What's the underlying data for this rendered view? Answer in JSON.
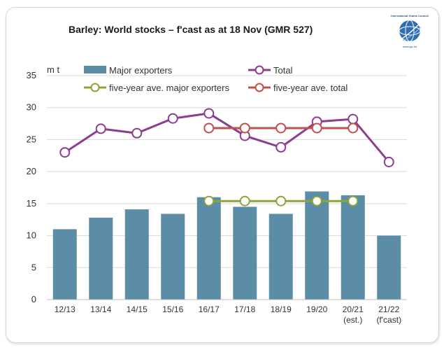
{
  "header": {
    "title": "Barley: World stocks – f'cast as at 18 Nov (GMR 527)"
  },
  "logo": {
    "org": "International Grains Council",
    "url": "www.igc.int"
  },
  "chart_data": {
    "type": "bar",
    "title": "Barley: World stocks – f'cast as at 18 Nov (GMR 527)",
    "ylabel": "m t",
    "ylim": [
      0,
      35
    ],
    "yticks": [
      0,
      5,
      10,
      15,
      20,
      25,
      30,
      35
    ],
    "grid": true,
    "legend_position": "top",
    "categories": [
      [
        "12/13"
      ],
      [
        "13/14"
      ],
      [
        "14/15"
      ],
      [
        "15/16"
      ],
      [
        "16/17"
      ],
      [
        "17/18"
      ],
      [
        "18/19"
      ],
      [
        "19/20"
      ],
      [
        "20/21",
        "(est.)"
      ],
      [
        "21/22",
        "(f'cast)"
      ]
    ],
    "series": [
      {
        "name": "Major exporters",
        "kind": "bar",
        "color": "#5b8ea6",
        "values": [
          11.0,
          12.8,
          14.1,
          13.4,
          16.0,
          14.5,
          13.4,
          16.9,
          16.3,
          10.0
        ]
      },
      {
        "name": "Total",
        "kind": "line",
        "color": "#8b3d8f",
        "values": [
          23.0,
          26.7,
          26.0,
          28.3,
          29.1,
          25.6,
          23.8,
          27.8,
          28.2,
          21.5
        ]
      },
      {
        "name": "five-year ave. major exporters",
        "kind": "line",
        "color": "#8ea33a",
        "values": [
          null,
          null,
          null,
          null,
          15.4,
          15.4,
          15.4,
          15.4,
          15.4,
          null
        ]
      },
      {
        "name": "five-year ave. total",
        "kind": "line",
        "color": "#c0504d",
        "values": [
          null,
          null,
          null,
          null,
          26.8,
          26.8,
          26.8,
          26.8,
          26.8,
          null
        ]
      }
    ]
  }
}
